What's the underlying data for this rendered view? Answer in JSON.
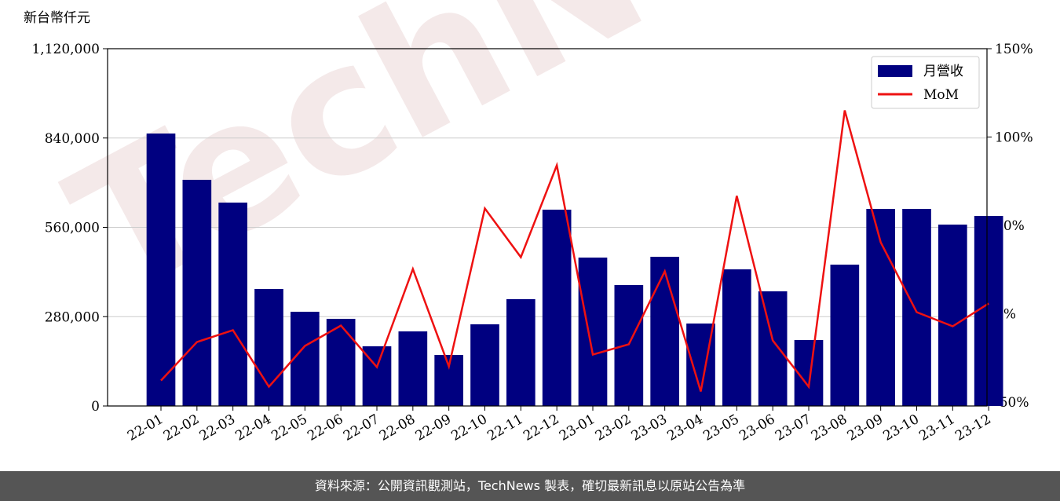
{
  "chart_data": {
    "type": "bar_line",
    "y_label": "新台幣仟元",
    "watermark": "TechNews",
    "source": "資料來源：公開資訊觀測站，TechNews 製表，確切最新訊息以原站公告為準",
    "categories": [
      "22-01",
      "22-02",
      "22-03",
      "22-04",
      "22-05",
      "22-06",
      "22-07",
      "22-08",
      "22-09",
      "22-10",
      "22-11",
      "22-12",
      "23-01",
      "23-02",
      "23-03",
      "23-04",
      "23-05",
      "23-06",
      "23-07",
      "23-08",
      "23-09",
      "23-10",
      "23-11",
      "23-12"
    ],
    "series": [
      {
        "name": "月營收",
        "type": "bar",
        "color": "#000080",
        "values": [
          854000,
          709000,
          637600,
          366800,
          295400,
          273200,
          187100,
          233800,
          160000,
          256000,
          334800,
          615400,
          465200,
          379100,
          467700,
          258500,
          428300,
          359400,
          206800,
          443100,
          617800,
          617800,
          568600,
          595700
        ]
      },
      {
        "name": "MoM",
        "type": "line",
        "axis": "y2",
        "color": "#ee1111",
        "values": [
          -37.8,
          -16,
          -9.3,
          -41.3,
          -18.2,
          -6.7,
          -30.2,
          25.3,
          -29.8,
          59.6,
          32,
          84,
          -23.1,
          -17.3,
          24,
          -44,
          66.7,
          -15.1,
          -41.3,
          115.1,
          40.4,
          0.9,
          -7.1,
          5.8
        ]
      }
    ],
    "ylim": [
      0,
      1120000
    ],
    "yticks": [
      0,
      {
        "value": 280000,
        "label": "280,000"
      },
      {
        "value": 560000,
        "label": "560,000"
      },
      {
        "value": 840000,
        "label": "840,000"
      },
      {
        "value": 1120000,
        "label": "1,120,000"
      }
    ],
    "y2lim": [
      -52.2,
      150
    ],
    "y2ticks": [
      {
        "value": -50,
        "label": "-50%"
      },
      {
        "value": 0,
        "label": "0%"
      },
      {
        "value": 50,
        "label": "50%"
      },
      {
        "value": 100,
        "label": "100%"
      },
      {
        "value": 150,
        "label": "150%"
      }
    ],
    "grid": true,
    "legend": "upper right"
  }
}
